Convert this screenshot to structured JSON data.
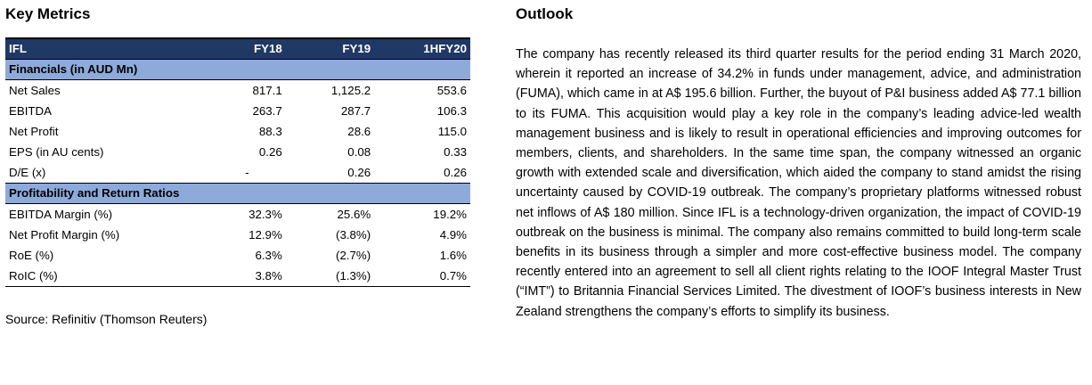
{
  "left": {
    "title": "Key Metrics",
    "table": {
      "headers": [
        "IFL",
        "FY18",
        "FY19",
        "1HFY20"
      ],
      "sections": [
        {
          "label": "Financials (in AUD Mn)",
          "rows": [
            {
              "label": "Net Sales",
              "values": [
                "817.1",
                "1,125.2",
                "553.6"
              ]
            },
            {
              "label": "EBITDA",
              "values": [
                "263.7",
                "287.7",
                "106.3"
              ]
            },
            {
              "label": "Net Profit",
              "values": [
                "88.3",
                "28.6",
                "115.0"
              ]
            },
            {
              "label": "EPS (in AU cents)",
              "values": [
                "0.26",
                "0.08",
                "0.33"
              ]
            },
            {
              "label": "D/E (x)",
              "values": [
                "-",
                "0.26",
                "0.26"
              ]
            }
          ]
        },
        {
          "label": "Profitability and Return Ratios",
          "rows": [
            {
              "label": "EBITDA Margin (%)",
              "values": [
                "32.3%",
                "25.6%",
                "19.2%"
              ]
            },
            {
              "label": "Net Profit Margin (%)",
              "values": [
                "12.9%",
                "(3.8%)",
                "4.9%"
              ]
            },
            {
              "label": "RoE (%)",
              "values": [
                "6.3%",
                "(2.7%)",
                "1.6%"
              ]
            },
            {
              "label": "RoIC (%)",
              "values": [
                "3.8%",
                "(1.3%)",
                "0.7%"
              ]
            }
          ]
        }
      ]
    },
    "source": "Source: Refinitiv (Thomson Reuters)"
  },
  "right": {
    "title": "Outlook",
    "text": "The company has recently released its third quarter results for the period ending 31 March 2020, wherein it reported an increase of 34.2% in funds under management, advice, and administration (FUMA), which came in at A$ 195.6 billion. Further, the buyout of P&I business added A$ 77.1 billion to its FUMA. This acquisition would play a key role in the company’s leading advice-led wealth management business and is likely to result in operational efficiencies and improving outcomes for members, clients, and shareholders. In the same time span, the company witnessed an organic growth with extended scale and diversification, which aided the company to stand amidst the rising uncertainty caused by COVID-19 outbreak. The company’s proprietary platforms witnessed robust net inflows of A$ 180 million. Since IFL is a technology-driven organization, the impact of COVID-19 outbreak on the business is minimal. The company also remains committed to build long-term scale benefits in its business through a simpler and more cost-effective business model. The company recently entered into an agreement to sell all client rights relating to the IOOF Integral Master Trust (“IMT”) to Britannia Financial Services Limited. The divestment of IOOF’s business interests in New Zealand strengthens the company’s efforts to simplify its business."
  }
}
